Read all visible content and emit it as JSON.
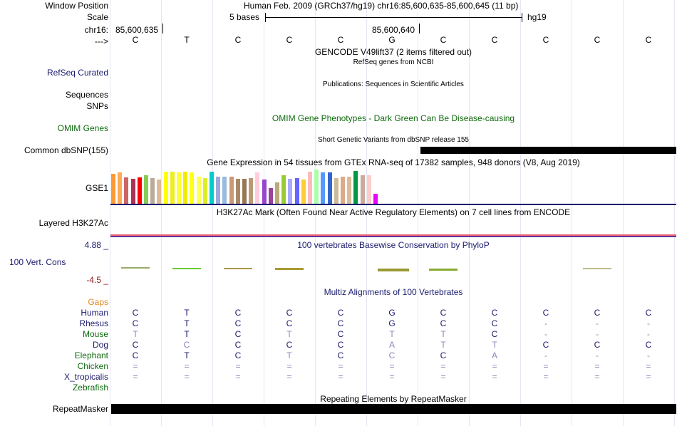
{
  "header": {
    "window_position_label": "Window Position",
    "window_position_value": "Human Feb. 2009 (GRCh37/hg19)   chr16:85,600,635-85,600,645 (11 bp)",
    "scale_label": "Scale",
    "scale_value": "5 bases",
    "scale_assembly": "hg19",
    "chrom_label": "chr16:",
    "pos_left": "85,600,635",
    "pos_mid": "85,600,640",
    "strand_label": "--->"
  },
  "sequence": [
    "C",
    "T",
    "C",
    "C",
    "C",
    "G",
    "C",
    "C",
    "C",
    "C",
    "C"
  ],
  "tracks": {
    "gencode_title": "GENCODE V49lift37 (2 items filtered out)",
    "refseq_subtitle": "RefSeq genes from NCBI",
    "refseq_label": "RefSeq Curated",
    "publications_title": "Publications: Sequences in Scientific Articles",
    "sequences_label": "Sequences",
    "snps_label": "SNPs",
    "omim_title": "OMIM Gene Phenotypes - Dark Green Can Be Disease-causing",
    "omim_label": "OMIM Genes",
    "dbsnp_title": "Short Genetic Variants from dbSNP release 155",
    "dbsnp_label": "Common dbSNP(155)",
    "gtex_title": "Gene Expression in 54 tissues from GTEx RNA-seq of 17382 samples, 948 donors (V8, Aug 2019)",
    "gtex_label": "GSE1",
    "h3k27ac_title": "H3K27Ac Mark (Often Found Near Active Regulatory Elements) on 7 cell lines from ENCODE",
    "h3k27ac_label": "Layered H3K27Ac",
    "phylop_max": "4.88 _",
    "phylop_title": "100 vertebrates Basewise Conservation by PhyloP",
    "phylop_label": "100 Vert. Cons",
    "phylop_min": "-4.5 _",
    "multiz_title": "Multiz Alignments of 100 Vertebrates",
    "gaps_label": "Gaps",
    "repeat_title": "Repeating Elements by RepeatMasker",
    "repeat_label": "RepeatMasker"
  },
  "alignment": [
    {
      "species": "Human",
      "color": "#1a1a6e",
      "bases": [
        "C",
        "T",
        "C",
        "C",
        "C",
        "G",
        "C",
        "C",
        "C",
        "C",
        "C"
      ]
    },
    {
      "species": "Rhesus",
      "color": "#1a1a6e",
      "bases": [
        "C",
        "T",
        "C",
        "C",
        "C",
        "G",
        "C",
        "C",
        "-",
        "-",
        "-"
      ]
    },
    {
      "species": "Mouse",
      "color": "#0f6b0f",
      "bases": [
        "T",
        "T",
        "C",
        "T",
        "C",
        "T",
        "T",
        "C",
        "-",
        "-",
        "-"
      ]
    },
    {
      "species": "Dog",
      "color": "#1a1a6e",
      "bases": [
        "C",
        "C",
        "C",
        "C",
        "C",
        "A",
        "T",
        "T",
        "C",
        "C",
        "C"
      ]
    },
    {
      "species": "Elephant",
      "color": "#0f6b0f",
      "bases": [
        "C",
        "T",
        "C",
        "T",
        "C",
        "C",
        "C",
        "A",
        "-",
        "-",
        "-"
      ]
    },
    {
      "species": "Chicken",
      "color": "#0f6b0f",
      "bases": [
        "=",
        "=",
        "=",
        "=",
        "=",
        "=",
        "=",
        "=",
        "=",
        "=",
        "="
      ]
    },
    {
      "species": "X_tropicalis",
      "color": "#1a1a6e",
      "bases": [
        "=",
        "=",
        "=",
        "=",
        "=",
        "=",
        "=",
        "=",
        "=",
        "=",
        "="
      ]
    },
    {
      "species": "Zebrafish",
      "color": "#0f6b0f",
      "bases": [
        "",
        "",
        "",
        "",
        "",
        "",
        "",
        "",
        "",
        "",
        ""
      ]
    }
  ],
  "gtex_colors": [
    "#ff9933",
    "#ffaa55",
    "#cc6666",
    "#aa3355",
    "#ff0000",
    "#88cc55",
    "#bbaa99",
    "#ddbb99",
    "#ffff00",
    "#eeee22",
    "#ffff33",
    "#eeee00",
    "#ffff11",
    "#ffff55",
    "#ddee22",
    "#00cccc",
    "#99aadd",
    "#99bbdd",
    "#cc9977",
    "#aa8866",
    "#997755",
    "#bb9977",
    "#ffccdd",
    "#9944cc",
    "#994499",
    "#bbaa77",
    "#99cc33",
    "#aaaaff",
    "#6666ff",
    "#ffcc33",
    "#ffbbbb",
    "#aaffaa",
    "#5599ff",
    "#3366cc",
    "#ccbb99",
    "#ddaa88",
    "#ddbb99",
    "#009944",
    "#ccaa99",
    "#ffcccc",
    "#ee00ff"
  ],
  "gtex_heights": [
    42,
    44,
    37,
    35,
    37,
    40,
    36,
    34,
    45,
    45,
    44,
    45,
    44,
    38,
    36,
    45,
    38,
    38,
    38,
    35,
    35,
    36,
    44,
    34,
    22,
    30,
    40,
    35,
    36,
    34,
    45,
    48,
    44,
    44,
    36,
    38,
    38,
    46,
    40,
    40,
    14
  ]
}
